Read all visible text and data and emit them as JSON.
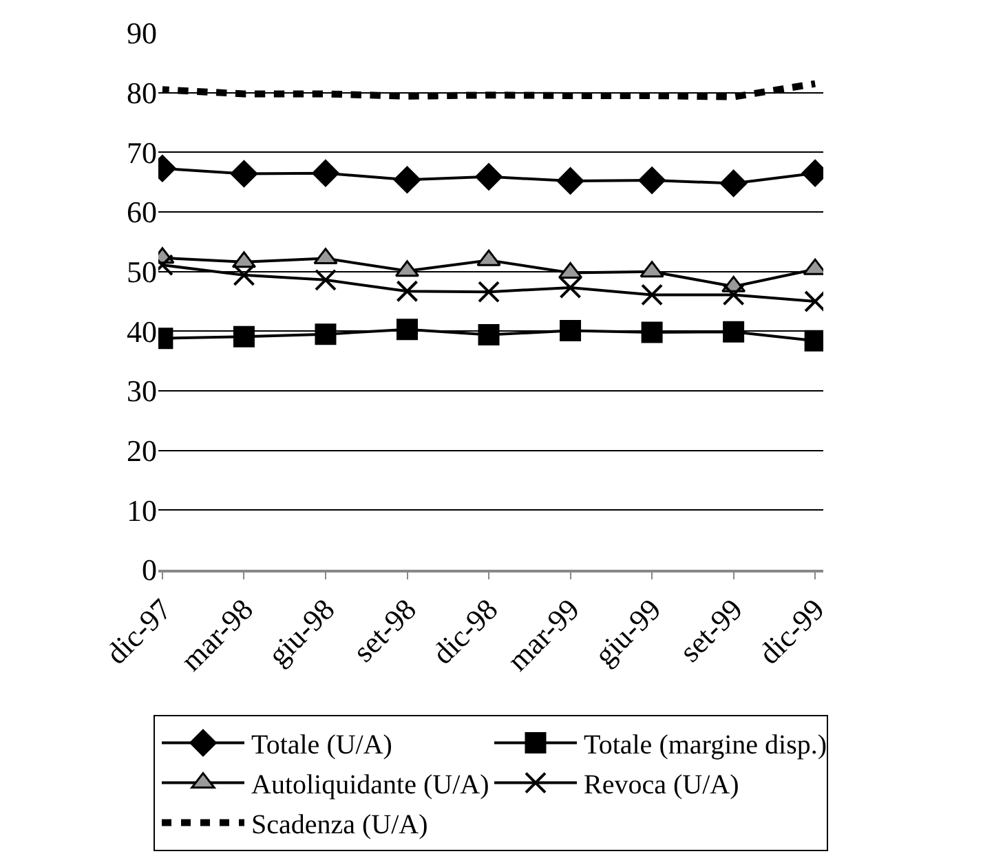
{
  "chart_data": {
    "type": "line",
    "categories": [
      "dic-97",
      "mar-98",
      "giu-98",
      "set-98",
      "dic-98",
      "mar-99",
      "giu-99",
      "set-99",
      "dic-99"
    ],
    "ylim": [
      0,
      90
    ],
    "yticks": [
      0,
      10,
      20,
      30,
      40,
      50,
      60,
      70,
      80,
      90
    ],
    "grid": "y",
    "legend": "bottom",
    "series": [
      {
        "name": "Totale (U/A)",
        "color": "#000000",
        "marker": "diamond",
        "line_style": "solid",
        "values": [
          67.3,
          66.4,
          66.5,
          65.4,
          65.9,
          65.2,
          65.3,
          64.8,
          66.5
        ]
      },
      {
        "name": "Totale (margine disp.)",
        "color": "#000000",
        "marker": "square",
        "line_style": "solid",
        "values": [
          38.8,
          39.1,
          39.5,
          40.3,
          39.4,
          40.1,
          39.8,
          39.9,
          38.4
        ]
      },
      {
        "name": "Autoliquidante (U/A)",
        "color": "#000000",
        "marker": "triangle",
        "line_style": "solid",
        "values": [
          52.3,
          51.6,
          52.2,
          50.1,
          51.9,
          49.8,
          50.0,
          47.5,
          50.4
        ]
      },
      {
        "name": "Revoca (U/A)",
        "color": "#000000",
        "marker": "cross",
        "line_style": "solid",
        "values": [
          51.1,
          49.4,
          48.6,
          46.7,
          46.6,
          47.3,
          46.1,
          46.1,
          45.0
        ]
      },
      {
        "name": "Scadenza (U/A)",
        "color": "#000000",
        "marker": "none",
        "line_style": "dashed",
        "values": [
          80.5,
          79.8,
          79.8,
          79.4,
          79.6,
          79.5,
          79.5,
          79.3,
          81.5
        ]
      }
    ]
  }
}
